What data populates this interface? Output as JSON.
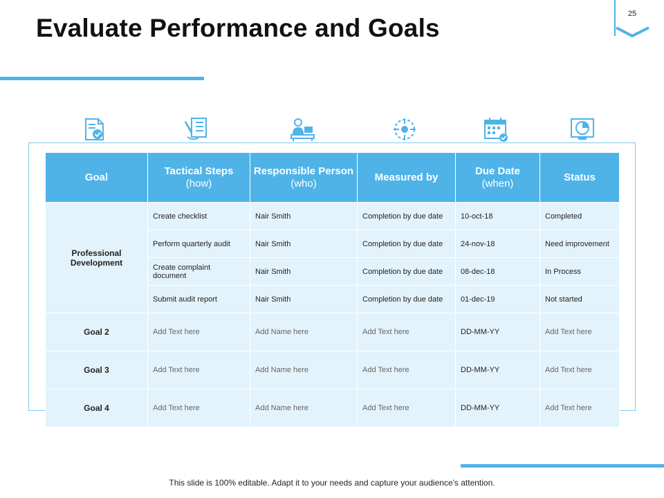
{
  "slide": {
    "title": "Evaluate Performance and Goals",
    "page_number": "25",
    "footer": "This slide is 100% editable. Adapt it to your needs and capture your audience's attention.",
    "accent_color": "#4fb3e8"
  },
  "icons": [
    "document-check-icon",
    "checklist-pen-icon",
    "person-desk-icon",
    "target-arrows-icon",
    "calendar-check-icon",
    "dashboard-chart-icon"
  ],
  "table": {
    "headers": [
      {
        "main": "Goal",
        "sub": ""
      },
      {
        "main": "Tactical Steps",
        "sub": "(how)"
      },
      {
        "main": "Responsible Person",
        "sub": "(who)"
      },
      {
        "main": "Measured by",
        "sub": ""
      },
      {
        "main": "Due Date",
        "sub": "(when)"
      },
      {
        "main": "Status",
        "sub": ""
      }
    ],
    "professional": {
      "goal": "Professional Development",
      "rows": [
        {
          "step": "Create checklist",
          "person": "Nair Smith",
          "measure": "Completion by due date",
          "due": "10-oct-18",
          "status": "Completed"
        },
        {
          "step": "Perform quarterly audit",
          "person": "Nair Smith",
          "measure": "Completion by due date",
          "due": "24-nov-18",
          "status": "Need improvement"
        },
        {
          "step": "Create complaint document",
          "person": "Nair Smith",
          "measure": "Completion by due date",
          "due": "08-dec-18",
          "status": "In Process"
        },
        {
          "step": "Submit audit report",
          "person": "Nair Smith",
          "measure": "Completion by due date",
          "due": "01-dec-19",
          "status": "Not started"
        }
      ]
    },
    "goals": [
      {
        "goal": "Goal 2",
        "step": "Add Text here",
        "person": "Add Name here",
        "measure": "Add Text here",
        "due": "DD-MM-YY",
        "status": "Add Text here"
      },
      {
        "goal": "Goal 3",
        "step": "Add Text here",
        "person": "Add Name here",
        "measure": "Add Text here",
        "due": "DD-MM-YY",
        "status": "Add Text here"
      },
      {
        "goal": "Goal 4",
        "step": "Add Text here",
        "person": "Add Name here",
        "measure": "Add Text here",
        "due": "DD-MM-YY",
        "status": "Add Text here"
      }
    ]
  }
}
